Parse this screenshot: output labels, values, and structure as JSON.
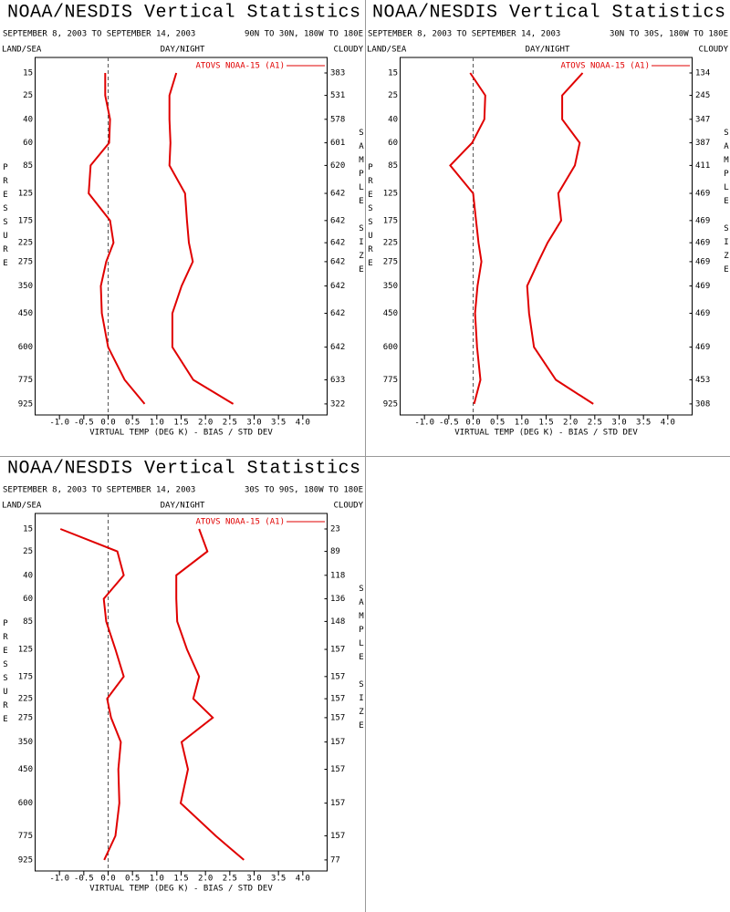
{
  "chart_data": [
    {
      "type": "line",
      "title": "NOAA/NESDIS Vertical Statistics",
      "subtitle": "SEPTEMBER 8, 2003 TO SEPTEMBER 14, 2003",
      "region": "90N TO 30N, 180W TO 180E",
      "left_label": "LAND/SEA",
      "center_label": "DAY/NIGHT",
      "right_label": "CLOUDY",
      "xlabel": "VIRTUAL TEMP (DEG K) - BIAS / STD DEV",
      "ylabel": "PRESSURE",
      "y2label": "SAMPLE SIZE",
      "y": [
        15,
        25,
        40,
        60,
        85,
        125,
        175,
        225,
        275,
        350,
        450,
        600,
        775,
        925
      ],
      "ylim": [
        10,
        1000
      ],
      "yticks": [
        15,
        25,
        40,
        60,
        85,
        125,
        175,
        225,
        275,
        350,
        450,
        600,
        775,
        925
      ],
      "xlim": [
        -1.5,
        4.5
      ],
      "xticks": [
        {
          "value": -1,
          "label": "-1.0"
        },
        {
          "value": -0.5,
          "label": "-0.5"
        },
        {
          "value": 0,
          "label": "0.0"
        },
        {
          "value": 0.5,
          "label": "0.5"
        },
        {
          "value": 1,
          "label": "1.0"
        },
        {
          "value": 1.5,
          "label": "1.5"
        },
        {
          "value": 2,
          "label": "2.0"
        },
        {
          "value": 2.5,
          "label": "2.5"
        },
        {
          "value": 3,
          "label": "3.0"
        },
        {
          "value": 3.5,
          "label": "3.5"
        },
        {
          "value": 4,
          "label": "4.0"
        }
      ],
      "legend": "upper right",
      "series": [
        {
          "name": "ATOVS NOAA-15 (A1)",
          "color": "#e00000",
          "bias": [
            -0.06,
            -0.06,
            0.04,
            0.02,
            -0.36,
            -0.4,
            0.04,
            0.11,
            -0.04,
            -0.15,
            -0.13,
            0.0,
            0.34,
            0.75
          ],
          "std_dev": [
            1.4,
            1.26,
            1.26,
            1.28,
            1.26,
            1.58,
            1.62,
            1.66,
            1.74,
            1.51,
            1.32,
            1.32,
            1.75,
            2.57
          ]
        }
      ],
      "sample_size": [
        383,
        531,
        578,
        601,
        620,
        642,
        642,
        642,
        642,
        642,
        642,
        642,
        633,
        322
      ]
    },
    {
      "type": "line",
      "title": "NOAA/NESDIS Vertical Statistics",
      "subtitle": "SEPTEMBER 8, 2003 TO SEPTEMBER 14, 2003",
      "region": "30N TO 30S, 180W TO 180E",
      "left_label": "LAND/SEA",
      "center_label": "DAY/NIGHT",
      "right_label": "CLOUDY",
      "xlabel": "VIRTUAL TEMP (DEG K) - BIAS / STD DEV",
      "ylabel": "PRESSURE",
      "y2label": "SAMPLE SIZE",
      "y": [
        15,
        25,
        40,
        60,
        85,
        125,
        175,
        225,
        275,
        350,
        450,
        600,
        775,
        925
      ],
      "ylim": [
        10,
        1000
      ],
      "yticks": [
        15,
        25,
        40,
        60,
        85,
        125,
        175,
        225,
        275,
        350,
        450,
        600,
        775,
        925
      ],
      "xlim": [
        -1.5,
        4.5
      ],
      "xticks": [
        {
          "value": -1,
          "label": "-1.0"
        },
        {
          "value": -0.5,
          "label": "-0.5"
        },
        {
          "value": 0,
          "label": "0.0"
        },
        {
          "value": 0.5,
          "label": "0.5"
        },
        {
          "value": 1,
          "label": "1.0"
        },
        {
          "value": 1.5,
          "label": "1.5"
        },
        {
          "value": 2,
          "label": "2.0"
        },
        {
          "value": 2.5,
          "label": "2.5"
        },
        {
          "value": 3,
          "label": "3.0"
        },
        {
          "value": 3.5,
          "label": "3.5"
        },
        {
          "value": 4,
          "label": "4.0"
        }
      ],
      "legend": "upper right",
      "series": [
        {
          "name": "ATOVS NOAA-15 (A1)",
          "color": "#e00000",
          "bias": [
            -0.06,
            0.25,
            0.23,
            -0.02,
            -0.47,
            0.0,
            0.06,
            0.11,
            0.17,
            0.09,
            0.04,
            0.08,
            0.15,
            0.02
          ],
          "std_dev": [
            2.25,
            1.83,
            1.83,
            2.19,
            2.09,
            1.75,
            1.81,
            1.53,
            1.34,
            1.11,
            1.15,
            1.25,
            1.7,
            2.47
          ]
        }
      ],
      "sample_size": [
        134,
        245,
        347,
        387,
        411,
        469,
        469,
        469,
        469,
        469,
        469,
        469,
        453,
        308
      ]
    },
    {
      "type": "line",
      "title": "NOAA/NESDIS Vertical Statistics",
      "subtitle": "SEPTEMBER 8, 2003 TO SEPTEMBER 14, 2003",
      "region": "30S TO 90S, 180W TO 180E",
      "left_label": "LAND/SEA",
      "center_label": "DAY/NIGHT",
      "right_label": "CLOUDY",
      "xlabel": "VIRTUAL TEMP (DEG K) - BIAS / STD DEV",
      "ylabel": "PRESSURE",
      "y2label": "SAMPLE SIZE",
      "y": [
        15,
        25,
        40,
        60,
        85,
        125,
        175,
        225,
        275,
        350,
        450,
        600,
        775,
        925
      ],
      "ylim": [
        10,
        1000
      ],
      "yticks": [
        15,
        25,
        40,
        60,
        85,
        125,
        175,
        225,
        275,
        350,
        450,
        600,
        775,
        925
      ],
      "xlim": [
        -1.5,
        4.5
      ],
      "xticks": [
        {
          "value": -1,
          "label": "-1.0"
        },
        {
          "value": -0.5,
          "label": "-0.5"
        },
        {
          "value": 0,
          "label": "0.0"
        },
        {
          "value": 0.5,
          "label": "0.5"
        },
        {
          "value": 1,
          "label": "1.0"
        },
        {
          "value": 1.5,
          "label": "1.5"
        },
        {
          "value": 2,
          "label": "2.0"
        },
        {
          "value": 2.5,
          "label": "2.5"
        },
        {
          "value": 3,
          "label": "3.0"
        },
        {
          "value": 3.5,
          "label": "3.5"
        },
        {
          "value": 4,
          "label": "4.0"
        }
      ],
      "legend": "upper right",
      "series": [
        {
          "name": "ATOVS NOAA-15 (A1)",
          "color": "#e00000",
          "bias": [
            -0.98,
            0.19,
            0.32,
            -0.09,
            -0.04,
            0.15,
            0.32,
            -0.02,
            0.06,
            0.26,
            0.21,
            0.23,
            0.15,
            -0.08
          ],
          "std_dev": [
            1.87,
            2.04,
            1.4,
            1.4,
            1.42,
            1.62,
            1.87,
            1.75,
            2.15,
            1.51,
            1.64,
            1.49,
            2.21,
            2.79
          ]
        }
      ],
      "sample_size": [
        23,
        89,
        118,
        136,
        148,
        157,
        157,
        157,
        157,
        157,
        157,
        157,
        157,
        77
      ]
    }
  ]
}
